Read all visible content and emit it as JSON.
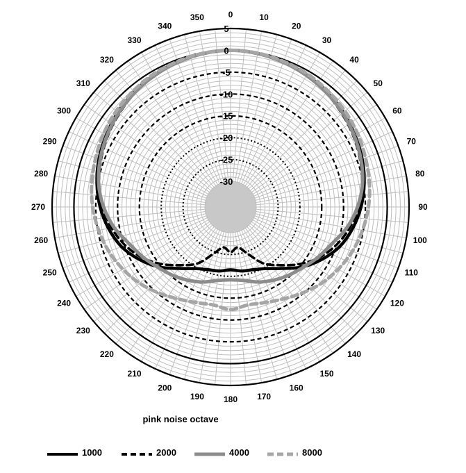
{
  "chart_data": {
    "type": "polar-line",
    "subtitle": "pink noise octave",
    "angle_labels": [
      "0",
      "10",
      "20",
      "30",
      "40",
      "50",
      "60",
      "70",
      "80",
      "90",
      "100",
      "110",
      "120",
      "130",
      "140",
      "150",
      "160",
      "170",
      "180",
      "190",
      "200",
      "210",
      "220",
      "230",
      "240",
      "250",
      "260",
      "270",
      "280",
      "290",
      "300",
      "310",
      "320",
      "330",
      "340",
      "350"
    ],
    "radial_labels": [
      "5",
      "0",
      "-5",
      "-10",
      "-15",
      "-20",
      "-25",
      "-30"
    ],
    "radial_range": [
      -30,
      5
    ],
    "radial_ticks": [
      5,
      0,
      -5,
      -10,
      -15,
      -20,
      -25,
      -30
    ],
    "angle_range_deg": [
      0,
      360
    ],
    "grid": true,
    "legend_position": "bottom",
    "series": [
      {
        "name": "1000",
        "color": "#000000",
        "style": "solid",
        "theta": [
          0,
          10,
          20,
          30,
          40,
          50,
          60,
          70,
          80,
          90,
          100,
          110,
          120,
          130,
          140,
          150,
          160,
          170,
          180,
          190,
          200,
          210,
          220,
          230,
          240,
          250,
          260,
          270,
          280,
          290,
          300,
          310,
          320,
          330,
          340,
          350
        ],
        "r": [
          0,
          -0.2,
          -0.5,
          -1,
          -1.5,
          -2.2,
          -3,
          -3.8,
          -4.8,
          -6,
          -7.5,
          -9.3,
          -11.8,
          -14.5,
          -17.5,
          -19.6,
          -20.6,
          -21,
          -21.5,
          -21,
          -20.6,
          -19.6,
          -17.5,
          -14.5,
          -11.8,
          -9.3,
          -7.5,
          -6,
          -4.8,
          -3.8,
          -3,
          -2.2,
          -1.5,
          -1,
          -0.5,
          -0.2
        ]
      },
      {
        "name": "2000",
        "color": "#000000",
        "style": "dashed",
        "theta": [
          0,
          10,
          20,
          30,
          40,
          50,
          60,
          70,
          80,
          90,
          100,
          110,
          120,
          130,
          140,
          150,
          160,
          170,
          180,
          190,
          200,
          210,
          220,
          230,
          240,
          250,
          260,
          270,
          280,
          290,
          300,
          310,
          320,
          330,
          340,
          350
        ],
        "r": [
          0,
          -0.2,
          -0.6,
          -1.2,
          -1.8,
          -2.6,
          -3.4,
          -4.3,
          -5.3,
          -6.6,
          -8.2,
          -10.2,
          -12.6,
          -15.5,
          -18.5,
          -21,
          -24.5,
          -26.5,
          -25.5,
          -26.5,
          -24.5,
          -21,
          -18.5,
          -15.5,
          -12.6,
          -10.2,
          -8.2,
          -6.6,
          -5.3,
          -4.3,
          -3.4,
          -2.6,
          -1.8,
          -1.2,
          -0.6,
          -0.2
        ]
      },
      {
        "name": "4000",
        "color": "#8c8c8c",
        "style": "solid",
        "theta": [
          0,
          10,
          20,
          30,
          40,
          50,
          60,
          70,
          80,
          90,
          100,
          110,
          120,
          130,
          140,
          150,
          160,
          170,
          180,
          190,
          200,
          210,
          220,
          230,
          240,
          250,
          260,
          270,
          280,
          290,
          300,
          310,
          320,
          330,
          340,
          350
        ],
        "r": [
          0,
          -0.2,
          -0.6,
          -1.1,
          -1.7,
          -2.4,
          -3.2,
          -4.1,
          -5.2,
          -6.8,
          -8.8,
          -11.2,
          -12.8,
          -14.3,
          -15.4,
          -16.5,
          -17.6,
          -18.8,
          -19.2,
          -18.8,
          -17.6,
          -16.5,
          -15.4,
          -14.3,
          -12.8,
          -11.2,
          -8.8,
          -6.8,
          -5.2,
          -4.1,
          -3.2,
          -2.4,
          -1.7,
          -1.1,
          -0.6,
          -0.2
        ]
      },
      {
        "name": "8000",
        "color": "#a6a6a6",
        "style": "dashed",
        "theta": [
          0,
          10,
          20,
          30,
          40,
          50,
          60,
          70,
          80,
          90,
          100,
          110,
          120,
          130,
          140,
          150,
          160,
          170,
          180,
          190,
          200,
          210,
          220,
          230,
          240,
          250,
          260,
          270,
          280,
          290,
          300,
          310,
          320,
          330,
          340,
          350
        ],
        "r": [
          0,
          -0.1,
          -0.4,
          -0.7,
          -1.2,
          -1.7,
          -2.3,
          -3,
          -3.6,
          -4.3,
          -5.2,
          -6.2,
          -7.4,
          -8.7,
          -10.2,
          -11.6,
          -12.6,
          -13.1,
          -12.4,
          -13.1,
          -12.6,
          -11.6,
          -10.2,
          -8.7,
          -7.4,
          -6.2,
          -5.2,
          -4.3,
          -3.6,
          -3,
          -2.3,
          -1.7,
          -1.2,
          -0.7,
          -0.4,
          -0.1
        ]
      }
    ]
  }
}
